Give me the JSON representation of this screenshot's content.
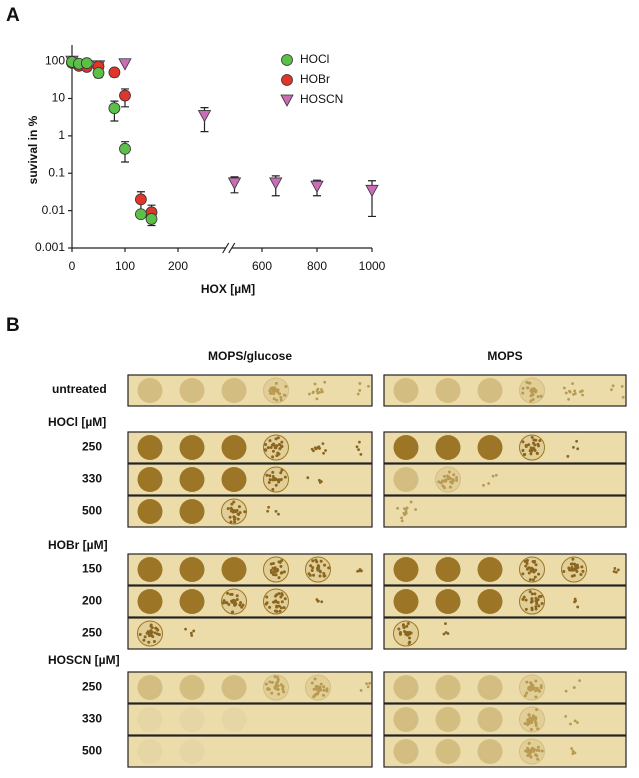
{
  "panel_a_label": "A",
  "chart_data": {
    "type": "scatter",
    "x_label": "HOX [µM]",
    "y_label": "suvival in %",
    "ylim": [
      0.001,
      270
    ],
    "ylog": true,
    "yticks": [
      0.001,
      0.01,
      0.1,
      1,
      10,
      100
    ],
    "xlim": [
      0,
      1000
    ],
    "xbreak": [
      290,
      490
    ],
    "xticks": [
      0,
      100,
      200,
      600,
      800,
      1000
    ],
    "legend": "upper right",
    "series": [
      {
        "name": "HOCl",
        "color": "#5cbf48",
        "marker": "circle",
        "x": [
          0,
          13,
          28,
          50,
          80,
          100,
          130,
          150
        ],
        "values": [
          95,
          85,
          88,
          48,
          5.5,
          0.45,
          0.008,
          0.006
        ],
        "errors": [
          null,
          null,
          null,
          12,
          3,
          0.25,
          null,
          null
        ]
      },
      {
        "name": "HOBr",
        "color": "#e0352b",
        "marker": "circle",
        "x": [
          0,
          13,
          28,
          50,
          80,
          100,
          130,
          150
        ],
        "values": [
          90,
          75,
          70,
          72,
          50,
          12,
          0.02,
          0.009
        ],
        "errors": [
          null,
          null,
          null,
          null,
          12,
          6,
          0.012,
          0.005
        ]
      },
      {
        "name": "HOSCN",
        "color": "#c86db6",
        "marker": "triangle-down",
        "x": [
          0,
          50,
          100,
          250,
          500,
          650,
          800,
          1000
        ],
        "values": [
          100,
          75,
          85,
          3.5,
          0.055,
          0.055,
          0.045,
          0.035
        ],
        "errors": [
          null,
          null,
          null,
          2.2,
          0.025,
          0.03,
          0.02,
          0.028
        ]
      }
    ]
  },
  "panel_b": {
    "label": "B",
    "columns": [
      "MOPS/glucose",
      "MOPS"
    ],
    "groups": [
      {
        "label": "untreated"
      },
      {
        "label": "HOCl [µM]",
        "rows": [
          250,
          330,
          500
        ]
      },
      {
        "label": "HOBr [µM]",
        "rows": [
          150,
          200,
          250
        ]
      },
      {
        "label": "HOSCN [µM]",
        "rows": [
          250,
          330,
          500
        ]
      }
    ]
  }
}
